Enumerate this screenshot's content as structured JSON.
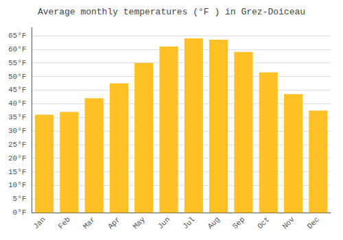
{
  "chart_data": {
    "type": "bar",
    "title": "Average monthly temperatures (°F ) in Grez-Doiceau",
    "categories": [
      "Jan",
      "Feb",
      "Mar",
      "Apr",
      "May",
      "Jun",
      "Jul",
      "Aug",
      "Sep",
      "Oct",
      "Nov",
      "Dec"
    ],
    "values": [
      36,
      37,
      42,
      47.5,
      55,
      61,
      64,
      63.5,
      59,
      51.5,
      43.5,
      37.5
    ],
    "color": "#FFC125",
    "ylim": [
      0,
      68
    ],
    "yticks": [
      {
        "value": 0,
        "label": "0°F"
      },
      {
        "value": 5,
        "label": "5°F"
      },
      {
        "value": 10,
        "label": "10°F"
      },
      {
        "value": 15,
        "label": "15°F"
      },
      {
        "value": 20,
        "label": "20°F"
      },
      {
        "value": 25,
        "label": "25°F"
      },
      {
        "value": 30,
        "label": "30°F"
      },
      {
        "value": 35,
        "label": "35°F"
      },
      {
        "value": 40,
        "label": "40°F"
      },
      {
        "value": 45,
        "label": "45°F"
      },
      {
        "value": 50,
        "label": "50°F"
      },
      {
        "value": 55,
        "label": "55°F"
      },
      {
        "value": 60,
        "label": "60°F"
      },
      {
        "value": 65,
        "label": "65°F"
      }
    ],
    "grid": true
  }
}
